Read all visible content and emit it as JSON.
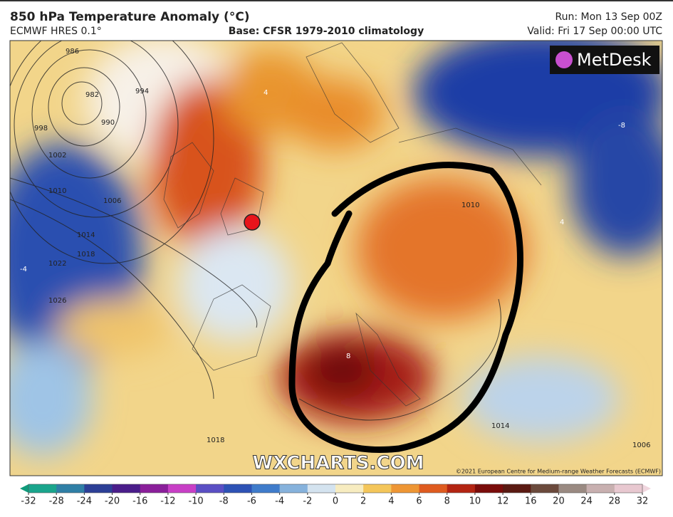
{
  "header": {
    "title": "850 hPa Temperature Anomaly (°C)",
    "model": "ECMWF HRES 0.1°",
    "base": "Base: CFSR 1979-2010 climatology",
    "run": "Run: Mon 13 Sep 00Z",
    "valid": "Valid: Fri 17 Sep 00:00 UTC"
  },
  "map": {
    "logo": "MetDesk",
    "watermark": "WXCHARTS.COM",
    "copyright": "©2021 European Centre for Medium-range Weather Forecasts (ECMWF)",
    "isobar_labels": [
      "986",
      "982",
      "990",
      "994",
      "998",
      "1002",
      "1006",
      "1010",
      "1014",
      "1018",
      "1022",
      "1026",
      "1010",
      "1018",
      "1014",
      "1006"
    ],
    "anomaly_labels": [
      "-8",
      "8",
      "4",
      "4",
      "-4"
    ]
  },
  "colorbar": {
    "ticks": [
      -32,
      -28,
      -24,
      -20,
      -16,
      -12,
      -10,
      -8,
      -6,
      -4,
      -2,
      0,
      2,
      4,
      6,
      8,
      10,
      12,
      16,
      20,
      24,
      28,
      32
    ]
  }
}
